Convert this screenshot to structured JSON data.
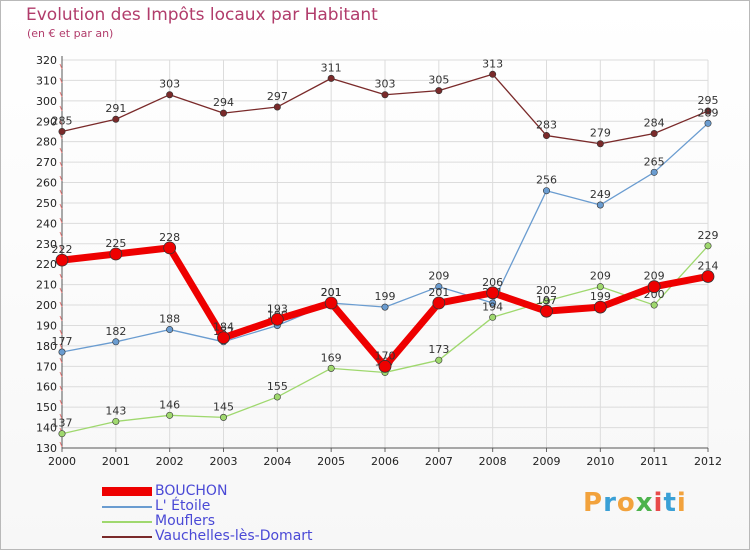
{
  "header": {
    "title": "Evolution des Impôts locaux par Habitant",
    "subtitle": "(en € et par an)"
  },
  "logo": {
    "text": "Proxiti",
    "colors": [
      "#f2a23c",
      "#3aa0d6",
      "#f2a23c",
      "#4db34d",
      "#e84a4a",
      "#3aa0d6",
      "#f2a23c"
    ]
  },
  "chart_data": {
    "type": "line",
    "title": "Evolution des Impôts locaux par Habitant",
    "subtitle": "(en € et par an)",
    "categories": [
      "2000",
      "2001",
      "2002",
      "2003",
      "2004",
      "2005",
      "2006",
      "2007",
      "2008",
      "2009",
      "2010",
      "2011",
      "2012"
    ],
    "ylim": [
      130,
      320
    ],
    "yticks": [
      130,
      140,
      150,
      160,
      170,
      180,
      190,
      200,
      210,
      220,
      230,
      240,
      250,
      260,
      270,
      280,
      290,
      300,
      310,
      320
    ],
    "grid": true,
    "legend_position": "bottom-left",
    "series": [
      {
        "name": "Vauchelles-lès-Domart",
        "color": "#7a2a2a",
        "values": [
          285,
          291,
          303,
          294,
          297,
          311,
          303,
          305,
          313,
          283,
          279,
          284,
          295
        ]
      },
      {
        "name": "L' Étoile",
        "color": "#6a9cd0",
        "values": [
          177,
          182,
          188,
          182,
          190,
          201,
          199,
          209,
          201,
          256,
          249,
          265,
          289
        ]
      },
      {
        "name": "Mouflers",
        "color": "#9fd86e",
        "values": [
          137,
          143,
          146,
          145,
          155,
          169,
          167,
          173,
          194,
          202,
          209,
          200,
          229
        ]
      },
      {
        "name": "BOUCHON",
        "color": "#ee0000",
        "values": [
          222,
          225,
          228,
          184,
          193,
          201,
          170,
          201,
          206,
          197,
          199,
          209,
          214
        ]
      }
    ],
    "data_labels": [
      [
        "285",
        "291",
        "303",
        "294",
        "297",
        "311",
        "303",
        "305",
        "313",
        "283",
        "279",
        "284",
        "295"
      ],
      [
        "177",
        "182",
        "188",
        "182",
        "190",
        "201",
        "199",
        "209",
        "201",
        "256",
        "249",
        "265",
        "289"
      ],
      [
        "137",
        "143",
        "146",
        "145",
        "155",
        "169",
        "167",
        "173",
        "194",
        "202",
        "209",
        "200",
        "229"
      ],
      [
        "222",
        "225",
        "228",
        "184",
        "193",
        "201",
        "170",
        "201",
        "206",
        "197",
        "199",
        "209",
        "214"
      ]
    ]
  },
  "legend": {
    "items": [
      {
        "label": "BOUCHON",
        "color": "#ee0000"
      },
      {
        "label": "L' Étoile",
        "color": "#6a9cd0"
      },
      {
        "label": "Mouflers",
        "color": "#9fd86e"
      },
      {
        "label": "Vauchelles-lès-Domart",
        "color": "#7a2a2a"
      }
    ]
  }
}
